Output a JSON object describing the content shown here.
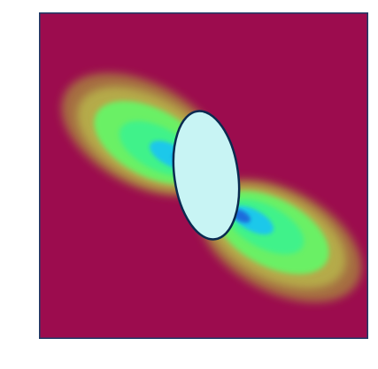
{
  "figure": {
    "background_color": "#ffffff",
    "field_color": "#9c0c4e",
    "frame_color": "#1c3a66",
    "inclusion_color": "#c8f4f4",
    "inclusion_edge_color": "#0a2a50",
    "contour_colors": [
      "#a98f3e",
      "#b8b64b",
      "#6bf065",
      "#3ff28a",
      "#1ec8ea",
      "#1a6cdc"
    ],
    "description_icon": "stress-contour-field"
  }
}
